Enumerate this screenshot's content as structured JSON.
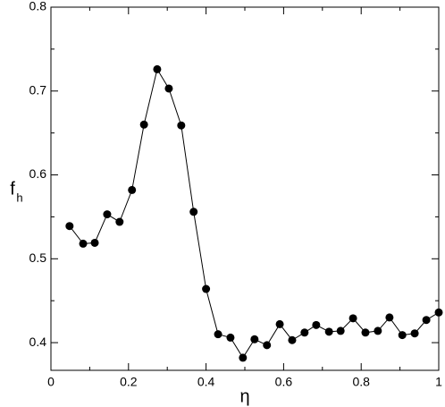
{
  "chart_data": {
    "type": "line",
    "xlabel": "η",
    "ylabel": "f",
    "ylabel_sub": "h",
    "x": [
      0.048,
      0.083,
      0.113,
      0.145,
      0.177,
      0.209,
      0.24,
      0.274,
      0.304,
      0.336,
      0.368,
      0.4,
      0.431,
      0.463,
      0.495,
      0.525,
      0.557,
      0.59,
      0.622,
      0.654,
      0.684,
      0.717,
      0.747,
      0.779,
      0.811,
      0.843,
      0.873,
      0.906,
      0.938,
      0.968,
      1.0
    ],
    "series": [
      {
        "color": "#000000",
        "values": [
          0.539,
          0.518,
          0.519,
          0.553,
          0.544,
          0.582,
          0.66,
          0.726,
          0.703,
          0.659,
          0.556,
          0.464,
          0.41,
          0.406,
          0.382,
          0.404,
          0.397,
          0.422,
          0.403,
          0.412,
          0.421,
          0.413,
          0.414,
          0.429,
          0.412,
          0.414,
          0.43,
          0.409,
          0.411,
          0.427,
          0.436
        ]
      }
    ],
    "xlim": [
      0,
      1
    ],
    "ylim": [
      0.367,
      0.8
    ],
    "xticks": [
      0,
      0.2,
      0.4,
      0.6,
      0.8,
      1
    ],
    "yticks": [
      0.4,
      0.5,
      0.6,
      0.7,
      0.8
    ],
    "xminorticks": [
      0.1,
      0.3,
      0.5,
      0.7,
      0.9
    ],
    "yminorticks": [
      0.45,
      0.55,
      0.65,
      0.75
    ]
  }
}
